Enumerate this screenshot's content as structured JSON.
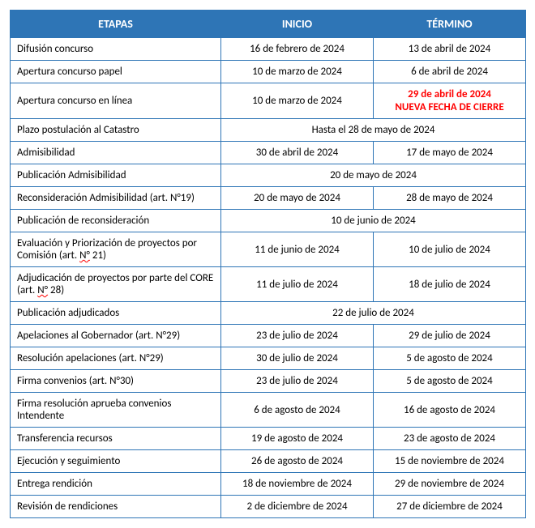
{
  "headers": {
    "etapas": "ETAPAS",
    "inicio": "INICIO",
    "termino": "TÉRMINO"
  },
  "rows": [
    {
      "etapa": "Difusión concurso",
      "inicio": "16 de febrero de 2024",
      "termino": "13 de abril de 2024"
    },
    {
      "etapa": "Apertura concurso papel",
      "inicio": "10 de marzo de 2024",
      "termino": "6 de abril de 2024"
    },
    {
      "etapa": "Apertura concurso en línea",
      "inicio": "10 de marzo de 2024",
      "termino_line1": "29 de abril de 2024",
      "termino_line2": "NUEVA FECHA DE CIERRE",
      "highlight": true
    },
    {
      "etapa": "Plazo postulación al Catastro",
      "merged": "Hasta el 28 de mayo de 2024"
    },
    {
      "etapa": "Admisibilidad",
      "inicio": "30 de abril de 2024",
      "termino": "17 de mayo de 2024"
    },
    {
      "etapa": "Publicación Admisibilidad",
      "merged": "20 de mayo de 2024"
    },
    {
      "etapa": "Reconsideración Admisibilidad (art. N°19)",
      "inicio": "20 de mayo de 2024",
      "termino": "28 de mayo de 2024"
    },
    {
      "etapa": "Publicación de reconsideración",
      "merged": "10 de junio de 2024"
    },
    {
      "etapa_pre": "Evaluación y Priorización de proyectos por Comisión (art. ",
      "etapa_squiggle": "N°",
      "etapa_post": " 21)",
      "inicio": "11 de junio de 2024",
      "termino": "10 de julio de 2024"
    },
    {
      "etapa_pre": "Adjudicación de proyectos por parte del CORE (art. ",
      "etapa_squiggle": "N°",
      "etapa_post": " 28)",
      "inicio": "11 de julio de 2024",
      "termino": "18 de julio de 2024"
    },
    {
      "etapa": "Publicación adjudicados",
      "merged": "22 de julio de 2024"
    },
    {
      "etapa": "Apelaciones al Gobernador (art. N°29)",
      "inicio": "23 de julio de 2024",
      "termino": "29 de julio de 2024"
    },
    {
      "etapa": "Resolución apelaciones (art. N°29)",
      "inicio": "30 de julio de 2024",
      "termino": "5 de agosto de 2024"
    },
    {
      "etapa": "Firma convenios (art. N°30)",
      "inicio": "23 de julio de 2024",
      "termino": "5 de agosto de 2024"
    },
    {
      "etapa": "Firma resolución aprueba convenios Intendente",
      "inicio": "6 de agosto de 2024",
      "termino": "16 de agosto de 2024"
    },
    {
      "etapa": "Transferencia recursos",
      "inicio": "19 de agosto de 2024",
      "termino": "23 de agosto de 2024"
    },
    {
      "etapa": "Ejecución y seguimiento",
      "inicio": "26 de agosto de 2024",
      "termino": "15 de noviembre de 2024"
    },
    {
      "etapa": "Entrega rendición",
      "inicio": "18 de noviembre de 2024",
      "termino": "29 de noviembre de 2024"
    },
    {
      "etapa": "Revisión de rendiciones",
      "inicio": "2 de diciembre de 2024",
      "termino": "27 de diciembre de 2024"
    }
  ]
}
